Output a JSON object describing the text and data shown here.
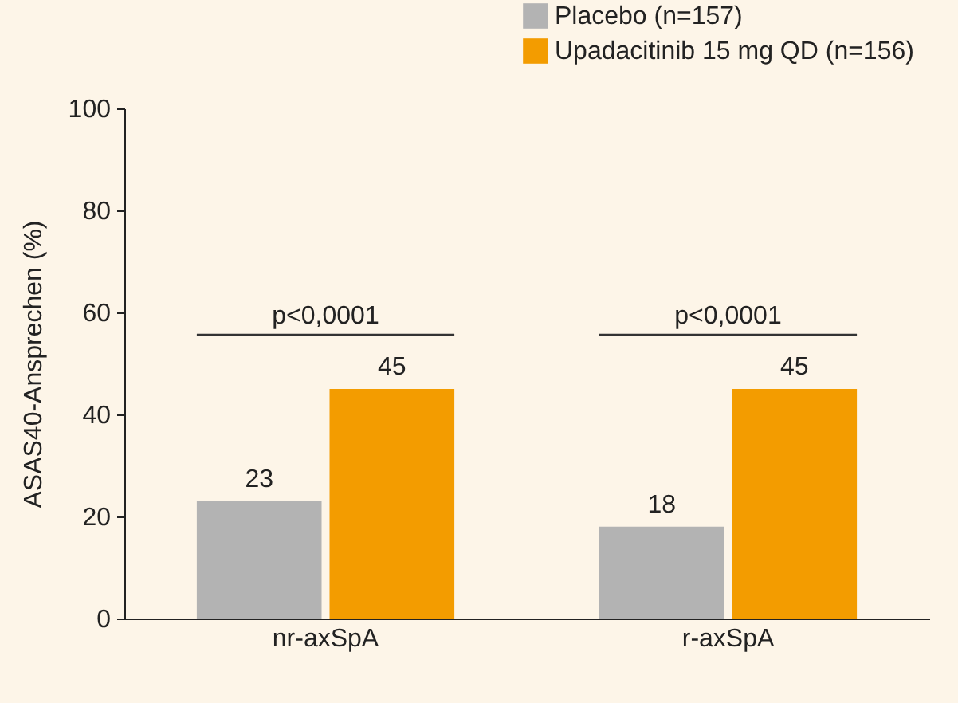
{
  "chart_data": {
    "type": "bar",
    "ylabel": "ASAS40-Ansprechen (%)",
    "categories": [
      "nr-axSpA",
      "r-axSpA"
    ],
    "series": [
      {
        "name": "Placebo (n=157)",
        "color": "#b3b3b3",
        "values": [
          23,
          18
        ]
      },
      {
        "name": "Upadacitinib 15 mg QD (n=156)",
        "color": "#f39c00",
        "values": [
          45,
          45
        ]
      }
    ],
    "ylim": [
      0,
      100
    ],
    "yticks": [
      0,
      20,
      40,
      60,
      80,
      100
    ],
    "grid": false,
    "legend": "top right",
    "data_labels": true,
    "annotations": [
      "p<0,0001",
      "p<0,0001"
    ]
  }
}
